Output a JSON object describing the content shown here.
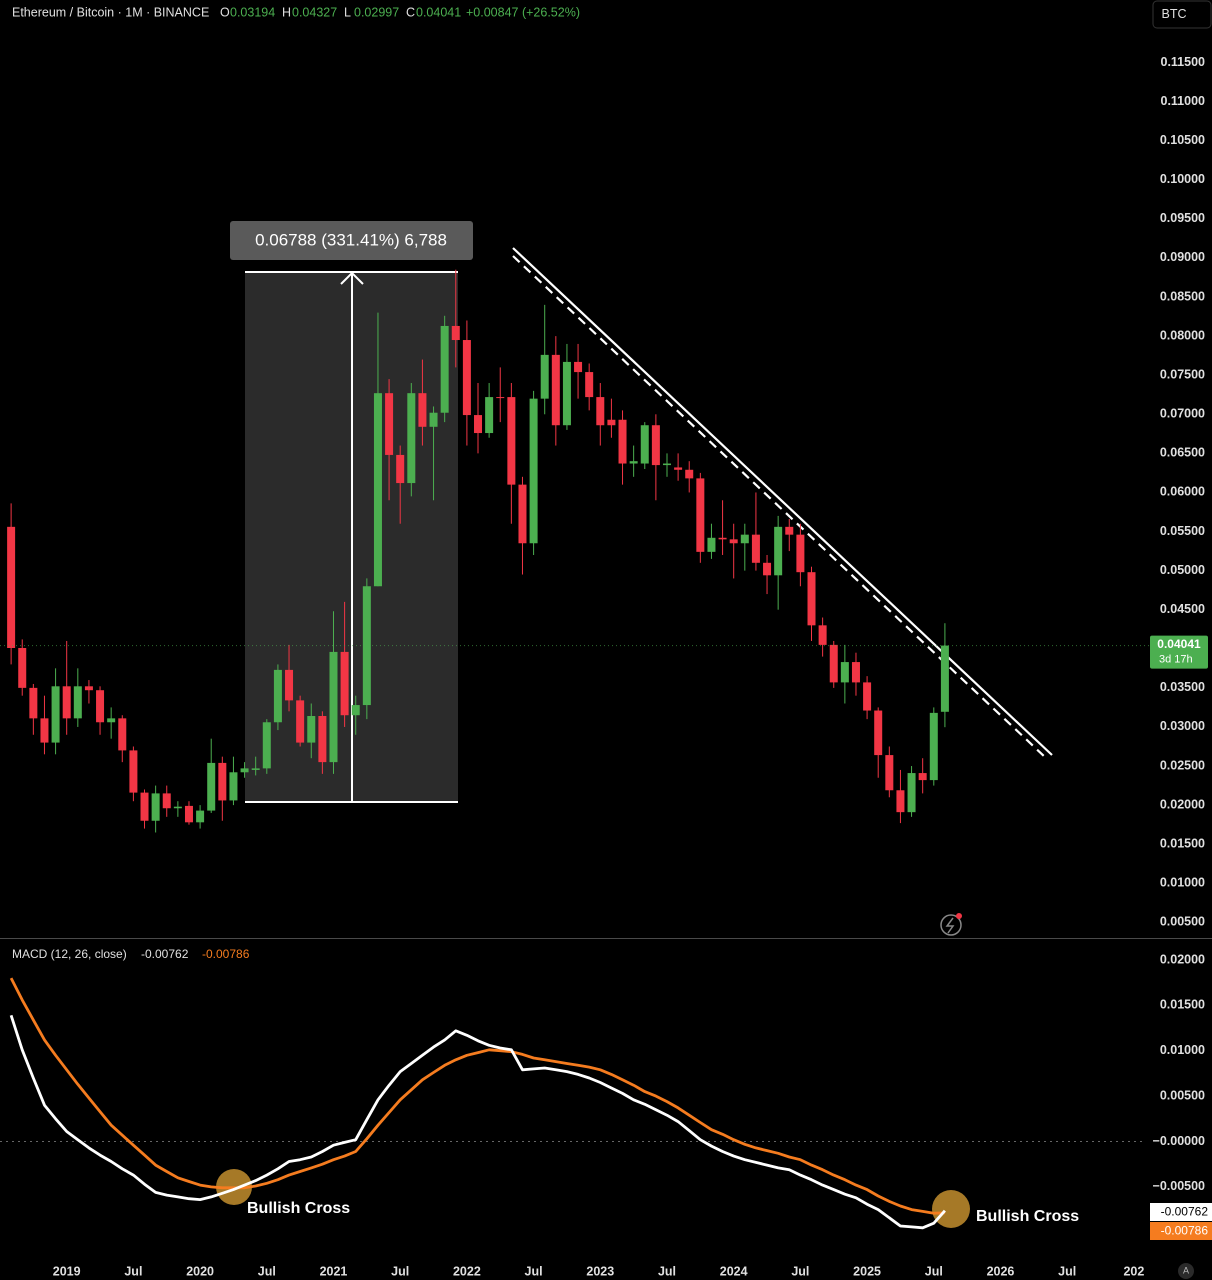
{
  "chart_data": [
    {
      "type": "candlestick",
      "title": "Ethereum / Bitcoin · 1M · BINANCE",
      "currency": "BTC",
      "ohlc_letters": [
        "O",
        "H",
        "L",
        "C"
      ],
      "change": "+0.00847 (+26.52%)",
      "countdown": "3d 17h",
      "measure_label": "0.06788 (331.41%) 6,788",
      "up_color": "#4caf50",
      "down_color": "#f23645",
      "x": [
        "2018-08",
        "2018-09",
        "2018-10",
        "2018-11",
        "2018-12",
        "2019-01",
        "2019-02",
        "2019-03",
        "2019-04",
        "2019-05",
        "2019-06",
        "2019-07",
        "2019-08",
        "2019-09",
        "2019-10",
        "2019-11",
        "2019-12",
        "2020-01",
        "2020-02",
        "2020-03",
        "2020-04",
        "2020-05",
        "2020-06",
        "2020-07",
        "2020-08",
        "2020-09",
        "2020-10",
        "2020-11",
        "2020-12",
        "2021-01",
        "2021-02",
        "2021-03",
        "2021-04",
        "2021-05",
        "2021-06",
        "2021-07",
        "2021-08",
        "2021-09",
        "2021-10",
        "2021-11",
        "2021-12",
        "2022-01",
        "2022-02",
        "2022-03",
        "2022-04",
        "2022-05",
        "2022-06",
        "2022-07",
        "2022-08",
        "2022-09",
        "2022-10",
        "2022-11",
        "2022-12",
        "2023-01",
        "2023-02",
        "2023-03",
        "2023-04",
        "2023-05",
        "2023-06",
        "2023-07",
        "2023-08",
        "2023-09",
        "2023-10",
        "2023-11",
        "2023-12",
        "2024-01",
        "2024-02",
        "2024-03",
        "2024-04",
        "2024-05",
        "2024-06",
        "2024-07",
        "2024-08",
        "2024-09",
        "2024-10",
        "2024-11",
        "2024-12",
        "2025-01",
        "2025-02",
        "2025-03",
        "2025-04",
        "2025-05",
        "2025-06",
        "2025-07",
        "2025-08"
      ],
      "open": [
        0.0556,
        0.0401,
        0.035,
        0.0311,
        0.028,
        0.0352,
        0.0311,
        0.0352,
        0.0347,
        0.0306,
        0.0311,
        0.027,
        0.0216,
        0.018,
        0.0215,
        0.0196,
        0.0199,
        0.0178,
        0.0193,
        0.0254,
        0.0206,
        0.0242,
        0.0245,
        0.0247,
        0.0306,
        0.0373,
        0.0334,
        0.028,
        0.0314,
        0.0255,
        0.0396,
        0.0315,
        0.0328,
        0.048,
        0.0727,
        0.0648,
        0.0612,
        0.0727,
        0.0684,
        0.0702,
        0.0813,
        0.0795,
        0.0699,
        0.0676,
        0.0722,
        0.0722,
        0.061,
        0.0535,
        0.072,
        0.0776,
        0.0686,
        0.0767,
        0.0754,
        0.0722,
        0.0693,
        0.0693,
        0.0637,
        0.0637,
        0.0686,
        0.0635,
        0.0632,
        0.0629,
        0.0618,
        0.0524,
        0.0542,
        0.054,
        0.0535,
        0.0546,
        0.051,
        0.0494,
        0.0556,
        0.0546,
        0.0498,
        0.043,
        0.0405,
        0.0357,
        0.0383,
        0.0357,
        0.0321,
        0.0264,
        0.0219,
        0.0191,
        0.0241,
        0.0232,
        0.03194
      ],
      "high": [
        0.0586,
        0.0412,
        0.0355,
        0.034,
        0.0375,
        0.041,
        0.0375,
        0.036,
        0.0352,
        0.0325,
        0.0315,
        0.0275,
        0.022,
        0.0225,
        0.0225,
        0.0205,
        0.0205,
        0.02,
        0.0285,
        0.0262,
        0.0262,
        0.0255,
        0.0262,
        0.031,
        0.038,
        0.0405,
        0.034,
        0.033,
        0.032,
        0.0448,
        0.046,
        0.034,
        0.049,
        0.083,
        0.0745,
        0.066,
        0.074,
        0.077,
        0.071,
        0.0826,
        0.0885,
        0.082,
        0.074,
        0.074,
        0.076,
        0.074,
        0.062,
        0.073,
        0.084,
        0.08,
        0.079,
        0.079,
        0.0765,
        0.074,
        0.072,
        0.0705,
        0.066,
        0.069,
        0.07,
        0.065,
        0.065,
        0.064,
        0.0625,
        0.056,
        0.059,
        0.056,
        0.056,
        0.06,
        0.052,
        0.057,
        0.0566,
        0.056,
        0.0505,
        0.044,
        0.041,
        0.0405,
        0.0395,
        0.0365,
        0.0325,
        0.0275,
        0.0245,
        0.025,
        0.026,
        0.0325,
        0.04327
      ],
      "low": [
        0.038,
        0.034,
        0.029,
        0.0265,
        0.0265,
        0.029,
        0.03,
        0.033,
        0.029,
        0.0285,
        0.0255,
        0.0205,
        0.017,
        0.0165,
        0.0185,
        0.0185,
        0.0175,
        0.017,
        0.019,
        0.018,
        0.02,
        0.0235,
        0.0238,
        0.024,
        0.0296,
        0.032,
        0.0275,
        0.026,
        0.024,
        0.024,
        0.03,
        0.029,
        0.031,
        0.048,
        0.059,
        0.056,
        0.0595,
        0.066,
        0.059,
        0.069,
        0.076,
        0.066,
        0.065,
        0.067,
        0.069,
        0.056,
        0.0495,
        0.052,
        0.07,
        0.066,
        0.068,
        0.072,
        0.0705,
        0.066,
        0.067,
        0.061,
        0.062,
        0.063,
        0.059,
        0.062,
        0.0615,
        0.06,
        0.051,
        0.0515,
        0.052,
        0.049,
        0.05,
        0.05,
        0.047,
        0.045,
        0.0525,
        0.048,
        0.041,
        0.039,
        0.035,
        0.033,
        0.034,
        0.031,
        0.0235,
        0.021,
        0.0177,
        0.0185,
        0.0215,
        0.0225,
        0.02997
      ],
      "close": [
        0.0401,
        0.035,
        0.0311,
        0.028,
        0.0352,
        0.0311,
        0.0352,
        0.0347,
        0.0306,
        0.0311,
        0.027,
        0.0216,
        0.018,
        0.0215,
        0.0196,
        0.0198,
        0.0178,
        0.0193,
        0.0254,
        0.0206,
        0.0242,
        0.0247,
        0.0247,
        0.0306,
        0.0373,
        0.0334,
        0.028,
        0.0314,
        0.0255,
        0.0396,
        0.0315,
        0.0328,
        0.048,
        0.0727,
        0.0648,
        0.0612,
        0.0727,
        0.0684,
        0.0702,
        0.0813,
        0.0795,
        0.0699,
        0.0676,
        0.0722,
        0.0721,
        0.061,
        0.0535,
        0.072,
        0.0776,
        0.0686,
        0.0767,
        0.0754,
        0.0722,
        0.0686,
        0.0686,
        0.0637,
        0.064,
        0.0686,
        0.0635,
        0.0637,
        0.0629,
        0.0618,
        0.0524,
        0.0542,
        0.054,
        0.0535,
        0.0546,
        0.051,
        0.0494,
        0.0556,
        0.0546,
        0.0498,
        0.043,
        0.0405,
        0.0357,
        0.0383,
        0.0357,
        0.0321,
        0.0264,
        0.0219,
        0.0191,
        0.0241,
        0.0232,
        0.0318,
        0.04041
      ],
      "xlim": [
        "2018-07",
        "2027-02"
      ],
      "ylim": [
        0.003,
        0.123
      ],
      "yticks": [
        {
          "value": 0.115,
          "label": "0.11500"
        },
        {
          "value": 0.11,
          "label": "0.11000"
        },
        {
          "value": 0.105,
          "label": "0.10500"
        },
        {
          "value": 0.1,
          "label": "0.10000"
        },
        {
          "value": 0.095,
          "label": "0.09500"
        },
        {
          "value": 0.09,
          "label": "0.09000"
        },
        {
          "value": 0.085,
          "label": "0.08500"
        },
        {
          "value": 0.08,
          "label": "0.08000"
        },
        {
          "value": 0.075,
          "label": "0.07500"
        },
        {
          "value": 0.07,
          "label": "0.07000"
        },
        {
          "value": 0.065,
          "label": "0.06500"
        },
        {
          "value": 0.06,
          "label": "0.06000"
        },
        {
          "value": 0.055,
          "label": "0.05500"
        },
        {
          "value": 0.05,
          "label": "0.05000"
        },
        {
          "value": 0.045,
          "label": "0.04500"
        },
        {
          "value": 0.04,
          "label": "0.04000"
        },
        {
          "value": 0.035,
          "label": "0.03500"
        },
        {
          "value": 0.03,
          "label": "0.03000"
        },
        {
          "value": 0.025,
          "label": "0.02500"
        },
        {
          "value": 0.02,
          "label": "0.02000"
        },
        {
          "value": 0.015,
          "label": "0.01500"
        },
        {
          "value": 0.01,
          "label": "0.01000"
        },
        {
          "value": 0.005,
          "label": "0.00500"
        }
      ]
    },
    {
      "type": "line",
      "title": "MACD (12, 26, close)",
      "annotations": [
        "Bullish Cross",
        "Bullish Cross"
      ],
      "x": [
        "2018-08",
        "2018-09",
        "2018-10",
        "2018-11",
        "2018-12",
        "2019-01",
        "2019-02",
        "2019-03",
        "2019-04",
        "2019-05",
        "2019-06",
        "2019-07",
        "2019-08",
        "2019-09",
        "2019-10",
        "2019-11",
        "2019-12",
        "2020-01",
        "2020-02",
        "2020-03",
        "2020-04",
        "2020-05",
        "2020-06",
        "2020-07",
        "2020-08",
        "2020-09",
        "2020-10",
        "2020-11",
        "2020-12",
        "2021-01",
        "2021-02",
        "2021-03",
        "2021-04",
        "2021-05",
        "2021-06",
        "2021-07",
        "2021-08",
        "2021-09",
        "2021-10",
        "2021-11",
        "2021-12",
        "2022-01",
        "2022-02",
        "2022-03",
        "2022-04",
        "2022-05",
        "2022-06",
        "2022-07",
        "2022-08",
        "2022-09",
        "2022-10",
        "2022-11",
        "2022-12",
        "2023-01",
        "2023-02",
        "2023-03",
        "2023-04",
        "2023-05",
        "2023-06",
        "2023-07",
        "2023-08",
        "2023-09",
        "2023-10",
        "2023-11",
        "2023-12",
        "2024-01",
        "2024-02",
        "2024-03",
        "2024-04",
        "2024-05",
        "2024-06",
        "2024-07",
        "2024-08",
        "2024-09",
        "2024-10",
        "2024-11",
        "2024-12",
        "2025-01",
        "2025-02",
        "2025-03",
        "2025-04",
        "2025-05",
        "2025-06",
        "2025-07",
        "2025-08"
      ],
      "series": [
        {
          "color": "#ffffff",
          "values": [
            0.0139,
            0.0101,
            0.007,
            0.004,
            0.0025,
            0.0011,
            0.0002,
            -0.0007,
            -0.0015,
            -0.0022,
            -0.003,
            -0.0037,
            -0.0047,
            -0.0056,
            -0.0059,
            -0.0061,
            -0.0063,
            -0.0064,
            -0.0061,
            -0.0057,
            -0.0053,
            -0.0048,
            -0.0043,
            -0.0037,
            -0.003,
            -0.0022,
            -0.002,
            -0.0017,
            -0.0011,
            -0.0004,
            -0.0001,
            0.0002,
            0.0024,
            0.0046,
            0.0062,
            0.0077,
            0.0086,
            0.0095,
            0.0104,
            0.0112,
            0.0122,
            0.0117,
            0.0111,
            0.0106,
            0.0103,
            0.0101,
            0.0079,
            0.008,
            0.0081,
            0.0079,
            0.0077,
            0.0074,
            0.007,
            0.0065,
            0.0059,
            0.0053,
            0.0046,
            0.0041,
            0.0035,
            0.0029,
            0.0022,
            0.0012,
            0.0002,
            -0.0005,
            -0.0011,
            -0.0016,
            -0.002,
            -0.0023,
            -0.0026,
            -0.0029,
            -0.0031,
            -0.0037,
            -0.0042,
            -0.0048,
            -0.0053,
            -0.0058,
            -0.0062,
            -0.0069,
            -0.0075,
            -0.0084,
            -0.0093,
            -0.0094,
            -0.0095,
            -0.009,
            -0.00762
          ]
        },
        {
          "color": "#f57c1f",
          "values": [
            0.018,
            0.0156,
            0.0134,
            0.0112,
            0.0095,
            0.0079,
            0.0063,
            0.0048,
            0.0033,
            0.0018,
            0.0007,
            -0.0004,
            -0.0015,
            -0.0026,
            -0.0033,
            -0.004,
            -0.0044,
            -0.0048,
            -0.005,
            -0.0051,
            -0.0051,
            -0.0051,
            -0.0049,
            -0.0046,
            -0.0042,
            -0.0037,
            -0.0033,
            -0.0029,
            -0.0025,
            -0.002,
            -0.0016,
            -0.0011,
            0.0003,
            0.0018,
            0.0032,
            0.0046,
            0.0057,
            0.0068,
            0.0076,
            0.0084,
            0.009,
            0.0095,
            0.0098,
            0.0101,
            0.01,
            0.0099,
            0.0096,
            0.0092,
            0.009,
            0.0088,
            0.0086,
            0.0084,
            0.0082,
            0.0079,
            0.0074,
            0.0068,
            0.0062,
            0.0055,
            0.005,
            0.0044,
            0.0037,
            0.0029,
            0.0021,
            0.0013,
            0.0008,
            0.0002,
            -0.0003,
            -0.0007,
            -0.001,
            -0.0013,
            -0.0017,
            -0.002,
            -0.0026,
            -0.0031,
            -0.0037,
            -0.0042,
            -0.0048,
            -0.0053,
            -0.006,
            -0.0066,
            -0.0071,
            -0.0075,
            -0.0077,
            -0.0079,
            -0.00786
          ]
        }
      ],
      "xlim": [
        "2018-07",
        "2027-02"
      ],
      "ylim": [
        -0.0125,
        0.0222
      ],
      "yticks": [
        {
          "value": 0.02,
          "label": "0.02000"
        },
        {
          "value": 0.015,
          "label": "0.01500"
        },
        {
          "value": 0.01,
          "label": "0.01000"
        },
        {
          "value": 0.005,
          "label": "0.00500"
        },
        {
          "value": 0,
          "label": "−0.00000"
        },
        {
          "value": -0.005,
          "label": "−0.00500"
        }
      ],
      "xticks": [
        {
          "value": "2019-01",
          "label": "2019"
        },
        {
          "value": "2019-07",
          "label": "Jul"
        },
        {
          "value": "2020-01",
          "label": "2020"
        },
        {
          "value": "2020-07",
          "label": "Jul"
        },
        {
          "value": "2021-01",
          "label": "2021"
        },
        {
          "value": "2021-07",
          "label": "Jul"
        },
        {
          "value": "2022-01",
          "label": "2022"
        },
        {
          "value": "2022-07",
          "label": "Jul"
        },
        {
          "value": "2023-01",
          "label": "2023"
        },
        {
          "value": "2023-07",
          "label": "Jul"
        },
        {
          "value": "2024-01",
          "label": "2024"
        },
        {
          "value": "2024-07",
          "label": "Jul"
        },
        {
          "value": "2025-01",
          "label": "2025"
        },
        {
          "value": "2025-07",
          "label": "Jul"
        },
        {
          "value": "2026-01",
          "label": "2026"
        },
        {
          "value": "2026-07",
          "label": "Jul"
        },
        {
          "value": "2027-01",
          "label": "202"
        }
      ]
    }
  ]
}
